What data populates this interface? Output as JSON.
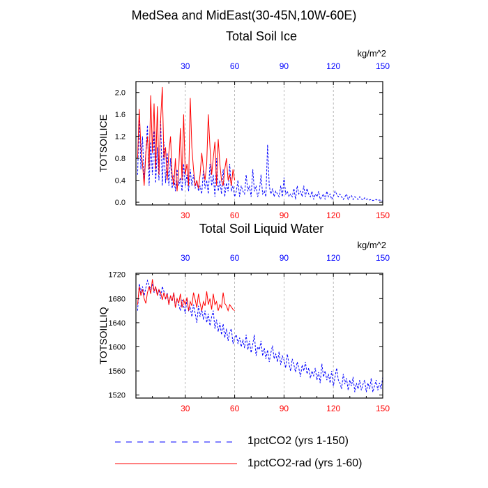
{
  "suptitle": "MedSea and MidEast(30-45N,10W-60E)",
  "legend": [
    {
      "label": "1pctCO2 (yrs 1-150)",
      "color": "#0000ff",
      "dash": "dashed"
    },
    {
      "label": "1pctCO2-rad (yrs 1-60)",
      "color": "#ff0000",
      "dash": "solid"
    }
  ],
  "colors": {
    "bottom_ticks": "#ff0000",
    "top_ticks": "#0000ff",
    "series1": "#0000ff",
    "series2": "#ff0000"
  },
  "chart_data": [
    {
      "type": "line",
      "title": "Total Soil Ice",
      "ylabel": "TOTSOILICE",
      "units": "kg/m^2",
      "xlim": [
        0,
        150
      ],
      "ylim": [
        -0.05,
        2.2
      ],
      "xticks_bottom": [
        30,
        60,
        90,
        120,
        150
      ],
      "xticks_top": [
        30,
        60,
        90,
        120,
        150
      ],
      "yticks": [
        0.0,
        0.4,
        0.8,
        1.2,
        1.6,
        2.0
      ],
      "ytick_labels": [
        "0.0",
        "0.4",
        "0.8",
        "1.2",
        "1.6",
        "2.0"
      ],
      "grid": "vertical dashed",
      "series": [
        {
          "name": "1pctCO2 (yrs 1-150)",
          "x_start": 1,
          "values": [
            0.5,
            1.6,
            0.6,
            1.2,
            0.4,
            0.9,
            1.4,
            0.3,
            1.1,
            0.5,
            1.3,
            0.35,
            1.0,
            0.4,
            1.5,
            0.3,
            1.1,
            0.35,
            0.9,
            0.3,
            0.8,
            0.25,
            0.5,
            0.2,
            0.6,
            0.3,
            0.45,
            0.2,
            0.7,
            0.3,
            0.5,
            0.2,
            0.6,
            0.3,
            0.5,
            0.25,
            0.4,
            0.2,
            0.3,
            0.15,
            0.6,
            0.25,
            0.4,
            0.15,
            0.7,
            0.3,
            0.5,
            0.1,
            0.8,
            0.2,
            0.4,
            0.15,
            0.6,
            0.1,
            0.35,
            0.2,
            0.7,
            0.2,
            0.3,
            0.1,
            0.2,
            0.4,
            0.1,
            0.3,
            0.2,
            0.15,
            0.5,
            0.2,
            0.3,
            0.1,
            0.6,
            0.2,
            0.3,
            0.1,
            0.2,
            0.5,
            0.15,
            0.2,
            0.1,
            1.05,
            0.3,
            0.15,
            0.25,
            0.1,
            0.2,
            0.15,
            0.1,
            0.3,
            0.1,
            0.45,
            0.15,
            0.2,
            0.1,
            0.15,
            0.1,
            0.25,
            0.05,
            0.3,
            0.15,
            0.2,
            0.1,
            0.3,
            0.1,
            0.25,
            0.15,
            0.1,
            0.2,
            0.05,
            0.15,
            0.1,
            0.2,
            0.05,
            0.1,
            0.15,
            0.05,
            0.2,
            0.1,
            0.15,
            0.05,
            0.1,
            0.2,
            0.15,
            0.1,
            0.15,
            0.1,
            0.05,
            0.1,
            0.15,
            0.05,
            0.1,
            0.12,
            0.05,
            0.1,
            0.08,
            0.05,
            0.1,
            0.06,
            0.04,
            0.08,
            0.05,
            0.06,
            0.04,
            0.05,
            0.03,
            0.04,
            0.05,
            0.03,
            0.04,
            0.03,
            0.02
          ]
        },
        {
          "name": "1pctCO2-rad (yrs 1-60)",
          "x_start": 1,
          "values": [
            0.8,
            1.7,
            1.0,
            0.7,
            0.3,
            0.9,
            1.2,
            0.6,
            1.95,
            0.9,
            1.8,
            0.6,
            1.75,
            0.5,
            1.5,
            2.1,
            0.8,
            1.0,
            0.4,
            0.9,
            1.2,
            0.5,
            0.3,
            0.8,
            0.2,
            0.6,
            1.35,
            0.4,
            1.6,
            0.5,
            0.7,
            0.3,
            1.9,
            1.0,
            0.6,
            0.3,
            0.4,
            0.25,
            0.5,
            0.9,
            0.6,
            0.4,
            0.7,
            1.6,
            1.0,
            0.5,
            0.8,
            1.1,
            0.3,
            1.15,
            0.7,
            0.4,
            0.3,
            0.6,
            0.8,
            0.4,
            0.5,
            0.3,
            0.6,
            0.4
          ]
        }
      ]
    },
    {
      "type": "line",
      "title": "Total Soil Liquid Water",
      "ylabel": "TOTSOILLIQ",
      "units": "kg/m^2",
      "xlim": [
        0,
        150
      ],
      "ylim": [
        1515,
        1722
      ],
      "xticks_bottom": [
        30,
        60,
        90,
        120,
        150
      ],
      "xticks_top": [
        30,
        60,
        90,
        120,
        150
      ],
      "yticks": [
        1520,
        1560,
        1600,
        1640,
        1680,
        1720
      ],
      "ytick_labels": [
        "1520",
        "1560",
        "1600",
        "1640",
        "1680",
        "1720"
      ],
      "grid": "vertical dashed",
      "series": [
        {
          "name": "1pctCO2 (yrs 1-150)",
          "x_start": 1,
          "values": [
            1660,
            1705,
            1690,
            1700,
            1685,
            1698,
            1710,
            1702,
            1695,
            1705,
            1690,
            1700,
            1688,
            1695,
            1680,
            1700,
            1692,
            1678,
            1690,
            1670,
            1685,
            1675,
            1690,
            1665,
            1680,
            1670,
            1660,
            1678,
            1668,
            1655,
            1680,
            1660,
            1665,
            1650,
            1670,
            1655,
            1640,
            1668,
            1650,
            1662,
            1645,
            1660,
            1640,
            1655,
            1635,
            1650,
            1660,
            1630,
            1645,
            1625,
            1640,
            1620,
            1638,
            1615,
            1630,
            1610,
            1625,
            1630,
            1605,
            1615,
            1620,
            1605,
            1615,
            1600,
            1612,
            1598,
            1620,
            1595,
            1610,
            1590,
            1605,
            1620,
            1585,
            1600,
            1595,
            1610,
            1585,
            1598,
            1580,
            1595,
            1575,
            1590,
            1602,
            1580,
            1588,
            1575,
            1592,
            1570,
            1585,
            1578,
            1565,
            1588,
            1572,
            1560,
            1580,
            1570,
            1558,
            1575,
            1565,
            1550,
            1570,
            1560,
            1575,
            1555,
            1565,
            1548,
            1560,
            1552,
            1565,
            1545,
            1558,
            1540,
            1572,
            1550,
            1560,
            1545,
            1555,
            1540,
            1560,
            1535,
            1550,
            1565,
            1545,
            1540,
            1530,
            1555,
            1538,
            1548,
            1528,
            1545,
            1535,
            1550,
            1525,
            1540,
            1530,
            1545,
            1528,
            1538,
            1545,
            1525,
            1540,
            1530,
            1548,
            1525,
            1535,
            1545,
            1528,
            1540,
            1530,
            1550
          ]
        },
        {
          "name": "1pctCO2-rad (yrs 1-60)",
          "x_start": 1,
          "values": [
            1670,
            1700,
            1685,
            1695,
            1680,
            1672,
            1690,
            1700,
            1688,
            1712,
            1692,
            1700,
            1685,
            1695,
            1690,
            1678,
            1690,
            1680,
            1688,
            1670,
            1685,
            1676,
            1690,
            1665,
            1680,
            1672,
            1688,
            1665,
            1678,
            1670,
            1682,
            1660,
            1675,
            1668,
            1690,
            1678,
            1665,
            1688,
            1672,
            1660,
            1675,
            1668,
            1692,
            1670,
            1680,
            1662,
            1688,
            1670,
            1675,
            1660,
            1670,
            1665,
            1690,
            1672,
            1668,
            1660,
            1670,
            1666,
            1662,
            1660
          ]
        }
      ]
    }
  ]
}
